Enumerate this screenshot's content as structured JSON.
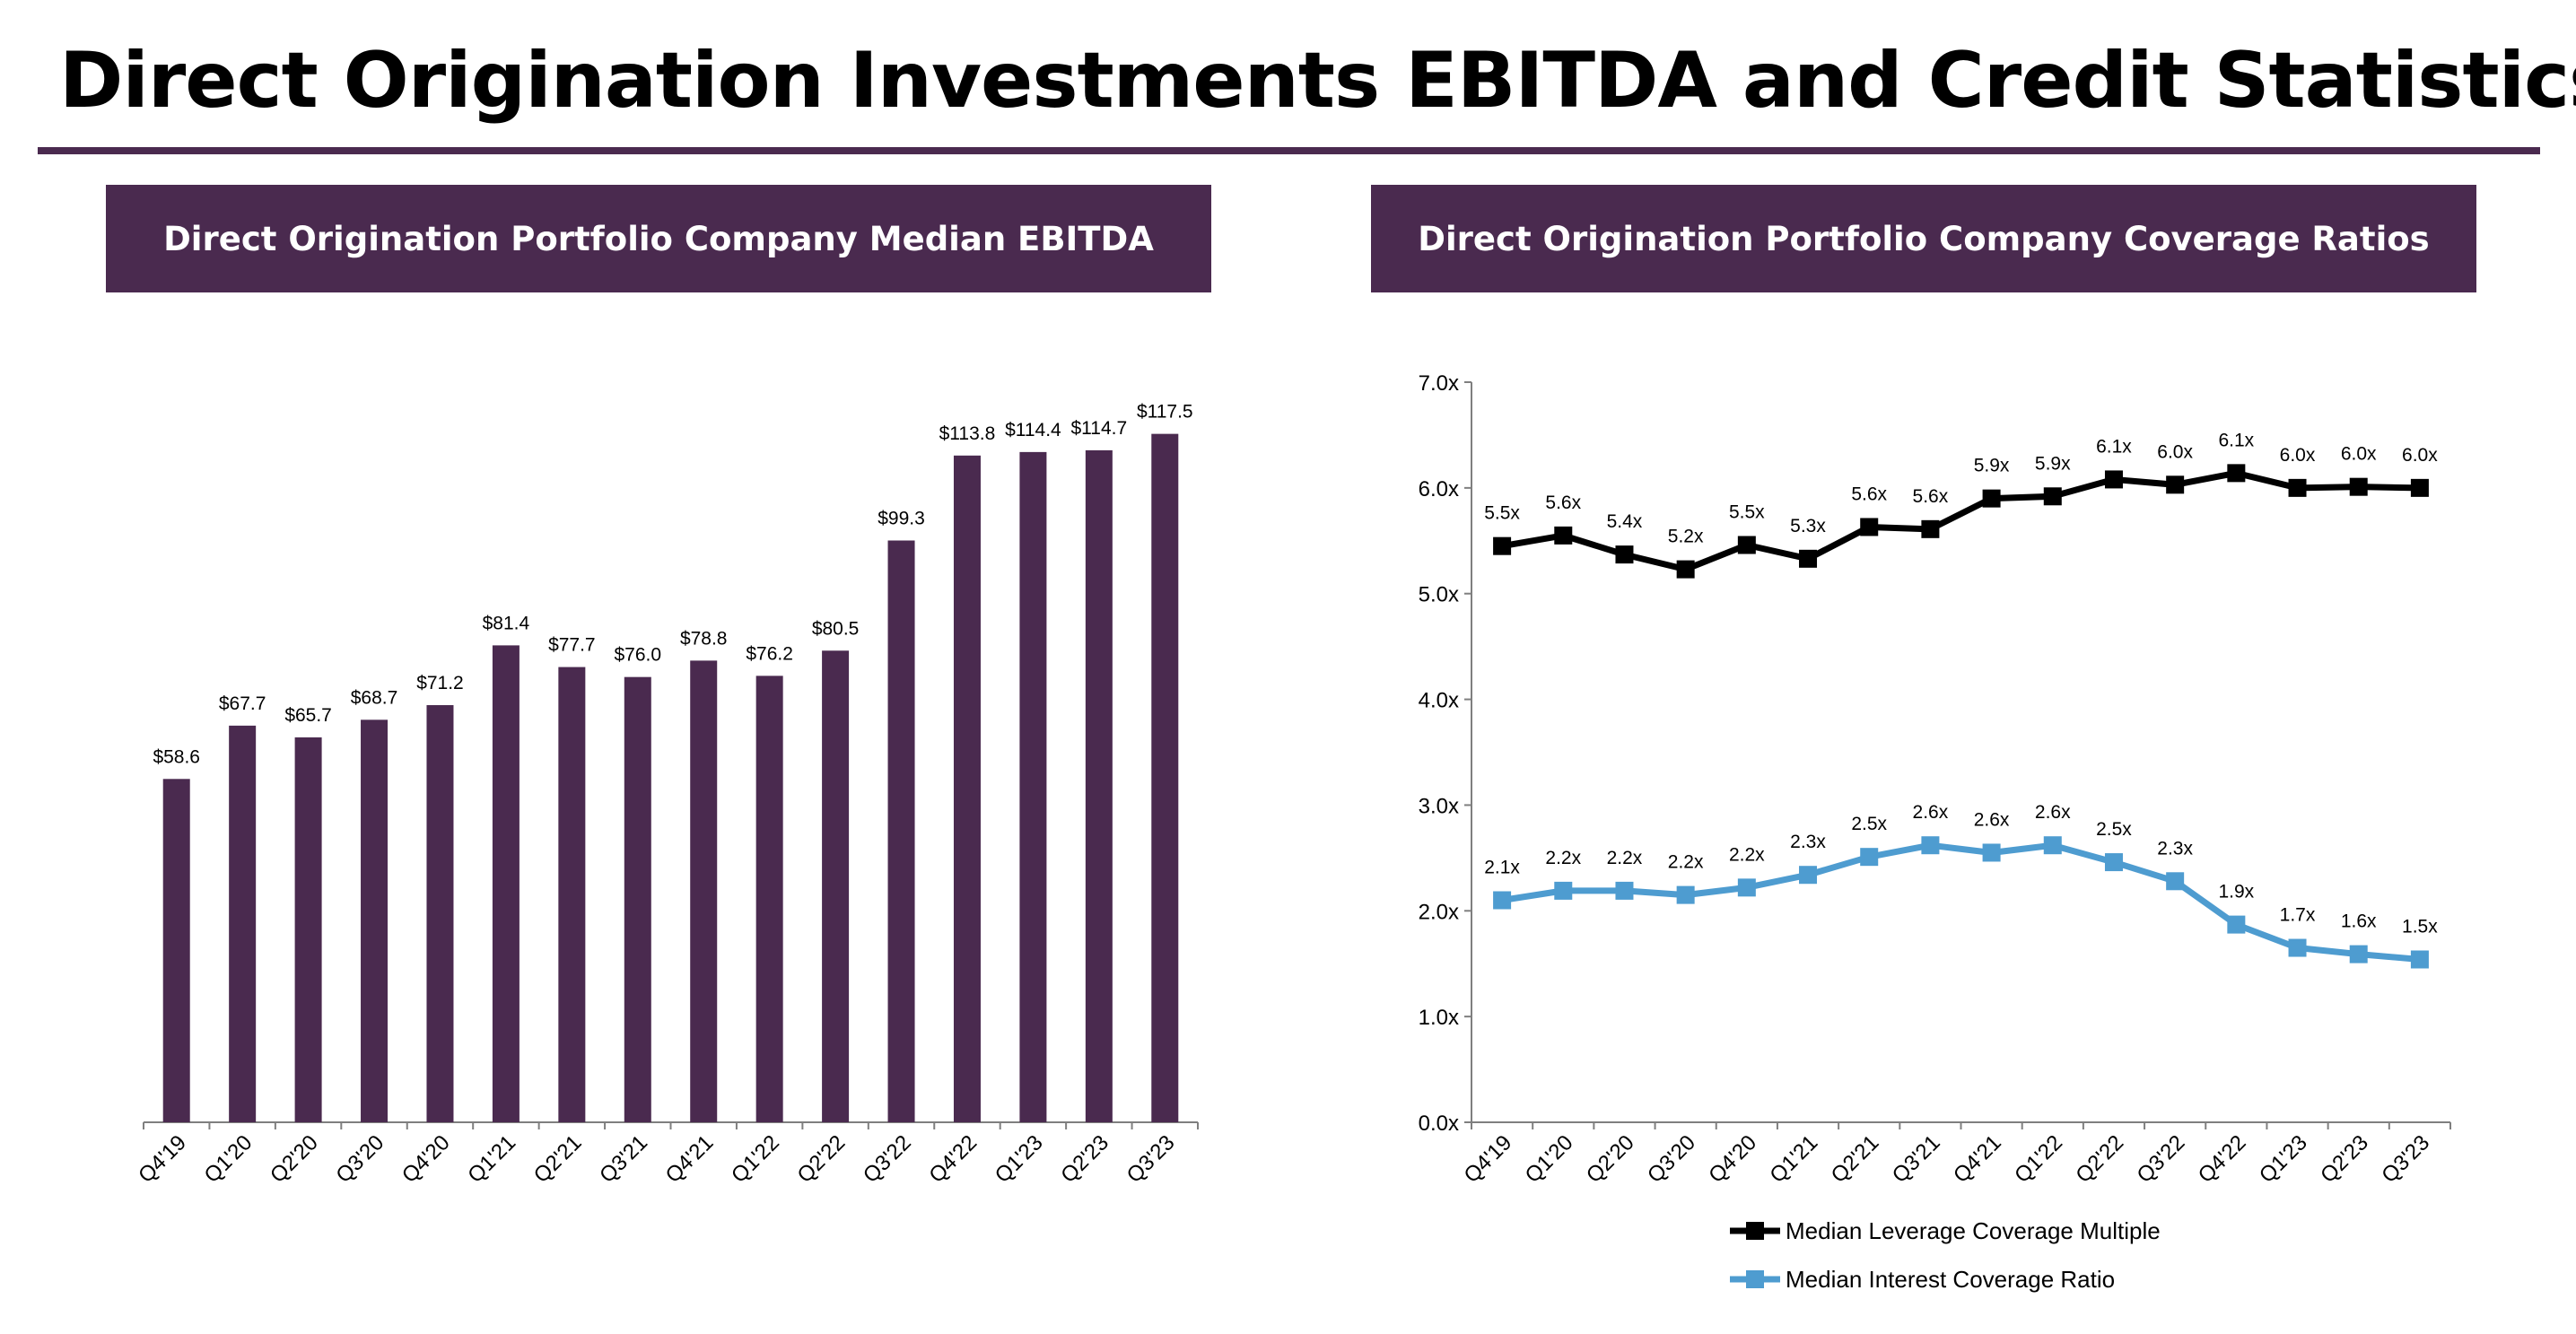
{
  "title": "Direct Origination Investments EBITDA and Credit Statistics",
  "left_panel": {
    "header": "Direct Origination Portfolio Company Median EBITDA"
  },
  "right_panel": {
    "header": "Direct Origination Portfolio Company Coverage Ratios"
  },
  "colors": {
    "brand": "#4a2a4f",
    "leverage": "#000000",
    "interest": "#4e9cd0"
  },
  "chart_data": [
    {
      "type": "bar",
      "title": "Direct Origination Portfolio Company Median EBITDA",
      "categories": [
        "Q4'19",
        "Q1'20",
        "Q2'20",
        "Q3'20",
        "Q4'20",
        "Q1'21",
        "Q2'21",
        "Q3'21",
        "Q4'21",
        "Q1'22",
        "Q2'22",
        "Q3'22",
        "Q4'22",
        "Q1'23",
        "Q2'23",
        "Q3'23"
      ],
      "values": [
        58.6,
        67.7,
        65.7,
        68.7,
        71.2,
        81.4,
        77.7,
        76.0,
        78.8,
        76.2,
        80.5,
        99.3,
        113.8,
        114.4,
        114.7,
        117.5
      ],
      "labels": [
        "$58.6",
        "$67.7",
        "$65.7",
        "$68.7",
        "$71.2",
        "$81.4",
        "$77.7",
        "$76.0",
        "$78.8",
        "$76.2",
        "$80.5",
        "$99.3",
        "$113.8",
        "$114.4",
        "$114.7",
        "$117.5"
      ],
      "ylim": [
        0,
        130
      ],
      "xlabel": "",
      "ylabel": "",
      "grid": false
    },
    {
      "type": "line",
      "title": "Direct Origination Portfolio Company Coverage Ratios",
      "categories": [
        "Q4'19",
        "Q1'20",
        "Q2'20",
        "Q3'20",
        "Q4'20",
        "Q1'21",
        "Q2'21",
        "Q3'21",
        "Q4'21",
        "Q1'22",
        "Q2'22",
        "Q3'22",
        "Q4'22",
        "Q1'23",
        "Q2'23",
        "Q3'23"
      ],
      "series": [
        {
          "name": "Median Leverage Coverage Multiple",
          "values": [
            5.45,
            5.55,
            5.37,
            5.23,
            5.46,
            5.33,
            5.63,
            5.61,
            5.9,
            5.92,
            6.08,
            6.03,
            6.14,
            6.0,
            6.01,
            6.0
          ],
          "labels": [
            "5.5x",
            "5.6x",
            "5.4x",
            "5.2x",
            "5.5x",
            "5.3x",
            "5.6x",
            "5.6x",
            "5.9x",
            "5.9x",
            "6.1x",
            "6.0x",
            "6.1x",
            "6.0x",
            "6.0x",
            "6.0x"
          ]
        },
        {
          "name": "Median Interest Coverage Ratio",
          "values": [
            2.1,
            2.19,
            2.19,
            2.15,
            2.22,
            2.34,
            2.51,
            2.62,
            2.55,
            2.62,
            2.46,
            2.28,
            1.87,
            1.65,
            1.59,
            1.54
          ],
          "labels": [
            "2.1x",
            "2.2x",
            "2.2x",
            "2.2x",
            "2.2x",
            "2.3x",
            "2.5x",
            "2.6x",
            "2.6x",
            "2.6x",
            "2.5x",
            "2.3x",
            "1.9x",
            "1.7x",
            "1.6x",
            "1.5x"
          ]
        }
      ],
      "yticks": [
        "0.0x",
        "1.0x",
        "2.0x",
        "3.0x",
        "4.0x",
        "5.0x",
        "6.0x",
        "7.0x"
      ],
      "ylim": [
        0,
        7
      ],
      "xlabel": "",
      "ylabel": "",
      "grid": false,
      "legend_position": "bottom"
    }
  ]
}
